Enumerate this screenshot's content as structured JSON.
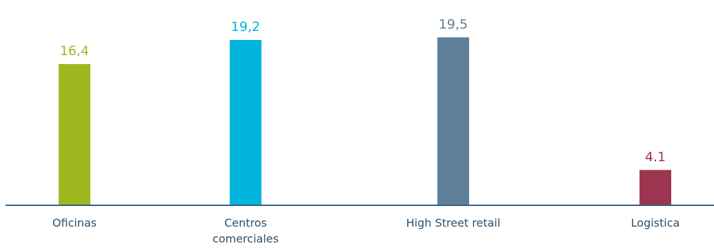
{
  "chart_data": {
    "type": "bar",
    "categories": [
      [
        "Oficinas"
      ],
      [
        "Centros",
        "comerciales"
      ],
      [
        "High Street retail"
      ],
      [
        "Logistica"
      ]
    ],
    "values": [
      16.4,
      19.2,
      19.5,
      4.1
    ],
    "value_labels": [
      "16,4",
      "19,2",
      "19,5",
      "4.1"
    ],
    "colors": [
      "#a0b820",
      "#00b4dc",
      "#5f7f99",
      "#9e3550"
    ],
    "axis_color": "#2f5f8a",
    "ylim": [
      0,
      20
    ],
    "grid": false,
    "legend": "none",
    "title": "",
    "xlabel": "",
    "ylabel": ""
  }
}
